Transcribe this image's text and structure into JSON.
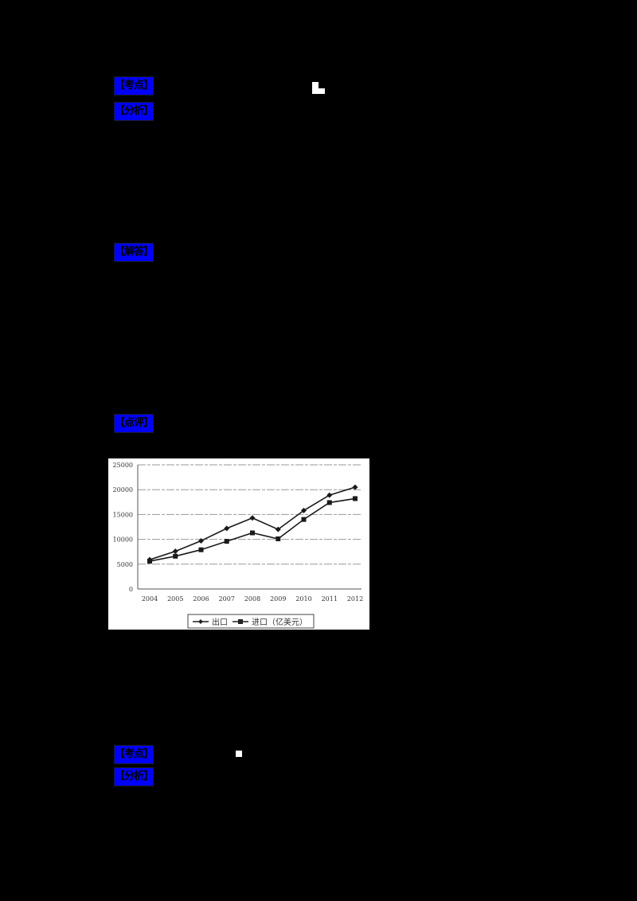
{
  "labels": {
    "kaodian_1": "【考点】",
    "fenxi_1": "【分析】",
    "jieda": "【解答】",
    "dianping": "【点评】",
    "kaodian_2": "【考点】",
    "fenxi_2": "【分析】"
  },
  "colors": {
    "page_background": "#000000",
    "label_highlight": "#0000ff",
    "chart_background": "#ffffff",
    "series_line": "#1a1a1a",
    "gridline": "#999999"
  },
  "chart_data": {
    "type": "line",
    "title": "",
    "xlabel": "",
    "ylabel": "",
    "categories": [
      "2004",
      "2005",
      "2006",
      "2007",
      "2008",
      "2009",
      "2010",
      "2011",
      "2012"
    ],
    "series": [
      {
        "name": "出口",
        "marker": "diamond",
        "values": [
          5900,
          7600,
          9700,
          12200,
          14300,
          12000,
          15800,
          18900,
          20500
        ]
      },
      {
        "name": "进口",
        "marker": "square",
        "values": [
          5600,
          6600,
          7900,
          9600,
          11300,
          10100,
          14000,
          17400,
          18200
        ]
      }
    ],
    "legend": [
      "出口",
      "进口（亿美元）"
    ],
    "legend_position": "bottom",
    "unit": "亿美元",
    "yticks": [
      "0",
      "5000",
      "10000",
      "15000",
      "20000",
      "25000"
    ],
    "ylim": [
      0,
      25000
    ],
    "grid": true
  }
}
